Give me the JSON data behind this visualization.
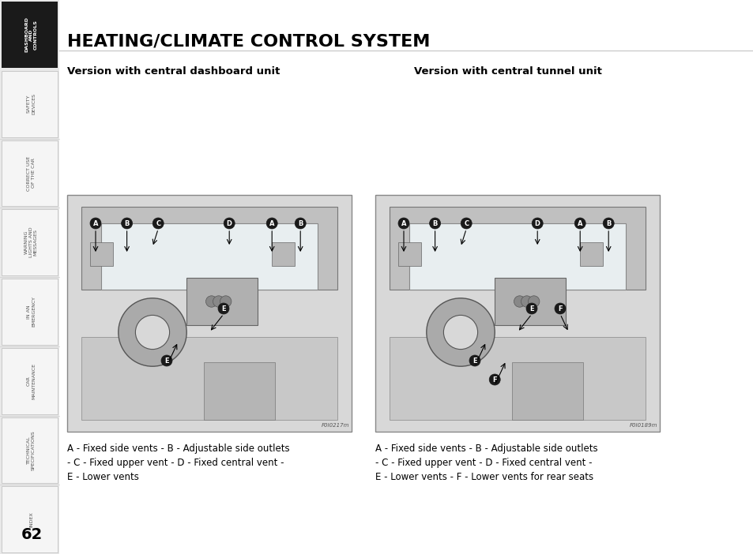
{
  "title": "HEATING/CLIMATE CONTROL SYSTEM",
  "subtitle_left": "Version with central dashboard unit",
  "subtitle_right": "Version with central tunnel unit",
  "caption_left": "A - Fixed side vents - B - Adjustable side outlets - C - Fixed upper vent - D - Fixed central vent - E - Lower vents",
  "caption_right": "A - Fixed side vents - B - Adjustable side outlets - C - Fixed upper vent - D - Fixed central vent - E - Lower vents - F - Lower vents for rear seats",
  "image_ref_left": "F0I0217m",
  "image_ref_right": "F0I0189m",
  "page_number": "62",
  "sidebar_items": [
    {
      "label": "DASHBOARD\nAND\nCONTROLS",
      "active": true
    },
    {
      "label": "SAFETY\nDEVICES",
      "active": false
    },
    {
      "label": "CORRECT USE\nOF THE CAR",
      "active": false
    },
    {
      "label": "WARNING\nLIGHTS AND\nMESSAGES",
      "active": false
    },
    {
      "label": "IN AN\nEMERGENCY",
      "active": false
    },
    {
      "label": "CAR\nMAINTENANCE",
      "active": false
    },
    {
      "label": "TECHNICAL\nSPECIFICATIONS",
      "active": false
    },
    {
      "label": "INDEX",
      "active": false
    }
  ],
  "bg_color": "#ffffff",
  "sidebar_bg": "#f0f0f0",
  "sidebar_active_bg": "#1a1a1a",
  "sidebar_active_fg": "#ffffff",
  "sidebar_inactive_fg": "#555555",
  "title_color": "#000000",
  "border_color": "#cccccc"
}
